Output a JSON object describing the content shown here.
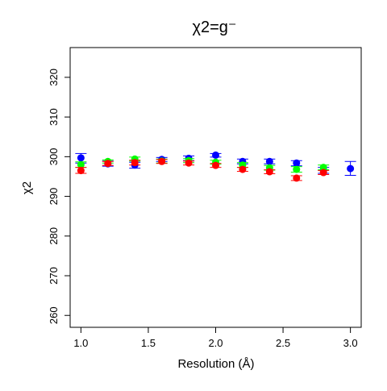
{
  "chart_data": {
    "type": "scatter",
    "title": "χ2=g⁻",
    "xlabel": "Resolution (Å)",
    "ylabel": "χ2",
    "xlim": [
      0.92,
      3.08
    ],
    "ylim": [
      257,
      327.5
    ],
    "xticks": [
      1.0,
      1.5,
      2.0,
      2.5,
      3.0
    ],
    "xtick_labels": [
      "1.0",
      "1.5",
      "2.0",
      "2.5",
      "3.0"
    ],
    "yticks": [
      260,
      270,
      280,
      290,
      300,
      310,
      320
    ],
    "ytick_labels": [
      "260",
      "270",
      "280",
      "290",
      "300",
      "310",
      "320"
    ],
    "grid": false,
    "legend": "none",
    "error_bars": true,
    "series": [
      {
        "color": "#0000ff",
        "points": [
          {
            "x": 1.0,
            "y": 299.7,
            "lo": 298.4,
            "hi": 300.8
          },
          {
            "x": 1.2,
            "y": 298.2,
            "lo": 297.6,
            "hi": 298.9
          },
          {
            "x": 1.4,
            "y": 297.9,
            "lo": 297.1,
            "hi": 298.6
          },
          {
            "x": 1.6,
            "y": 299.3,
            "lo": 298.8,
            "hi": 299.8
          },
          {
            "x": 1.8,
            "y": 299.6,
            "lo": 299.0,
            "hi": 300.2
          },
          {
            "x": 2.0,
            "y": 300.4,
            "lo": 299.9,
            "hi": 300.8
          },
          {
            "x": 2.2,
            "y": 298.8,
            "lo": 298.2,
            "hi": 299.4
          },
          {
            "x": 2.4,
            "y": 298.8,
            "lo": 298.2,
            "hi": 299.4
          },
          {
            "x": 2.6,
            "y": 298.4,
            "lo": 297.7,
            "hi": 299.0
          },
          {
            "x": 2.8,
            "y": 296.6,
            "lo": 295.8,
            "hi": 297.3
          },
          {
            "x": 3.0,
            "y": 297.0,
            "lo": 295.3,
            "hi": 298.8
          }
        ]
      },
      {
        "color": "#00ff00",
        "points": [
          {
            "x": 1.0,
            "y": 298.0,
            "lo": 297.3,
            "hi": 298.7
          },
          {
            "x": 1.2,
            "y": 298.8,
            "lo": 298.4,
            "hi": 299.2
          },
          {
            "x": 1.4,
            "y": 299.4,
            "lo": 298.9,
            "hi": 299.9
          },
          {
            "x": 1.6,
            "y": 298.9,
            "lo": 298.4,
            "hi": 299.4
          },
          {
            "x": 1.8,
            "y": 299.0,
            "lo": 298.5,
            "hi": 299.5
          },
          {
            "x": 2.0,
            "y": 298.6,
            "lo": 298.1,
            "hi": 299.1
          },
          {
            "x": 2.2,
            "y": 297.9,
            "lo": 297.3,
            "hi": 298.5
          },
          {
            "x": 2.4,
            "y": 297.2,
            "lo": 296.6,
            "hi": 297.8
          },
          {
            "x": 2.6,
            "y": 296.8,
            "lo": 296.1,
            "hi": 297.5
          },
          {
            "x": 2.8,
            "y": 297.3,
            "lo": 296.7,
            "hi": 297.9
          }
        ]
      },
      {
        "color": "#ff0000",
        "points": [
          {
            "x": 1.0,
            "y": 296.5,
            "lo": 295.8,
            "hi": 297.3
          },
          {
            "x": 1.2,
            "y": 298.3,
            "lo": 297.8,
            "hi": 298.8
          },
          {
            "x": 1.4,
            "y": 298.5,
            "lo": 297.9,
            "hi": 299.1
          },
          {
            "x": 1.6,
            "y": 298.8,
            "lo": 298.3,
            "hi": 299.3
          },
          {
            "x": 1.8,
            "y": 298.4,
            "lo": 297.9,
            "hi": 298.9
          },
          {
            "x": 2.0,
            "y": 297.8,
            "lo": 297.3,
            "hi": 298.3
          },
          {
            "x": 2.2,
            "y": 296.8,
            "lo": 296.3,
            "hi": 297.3
          },
          {
            "x": 2.4,
            "y": 296.2,
            "lo": 295.7,
            "hi": 296.7
          },
          {
            "x": 2.6,
            "y": 294.6,
            "lo": 294.0,
            "hi": 295.2
          },
          {
            "x": 2.8,
            "y": 296.0,
            "lo": 295.5,
            "hi": 296.5
          }
        ]
      }
    ]
  }
}
